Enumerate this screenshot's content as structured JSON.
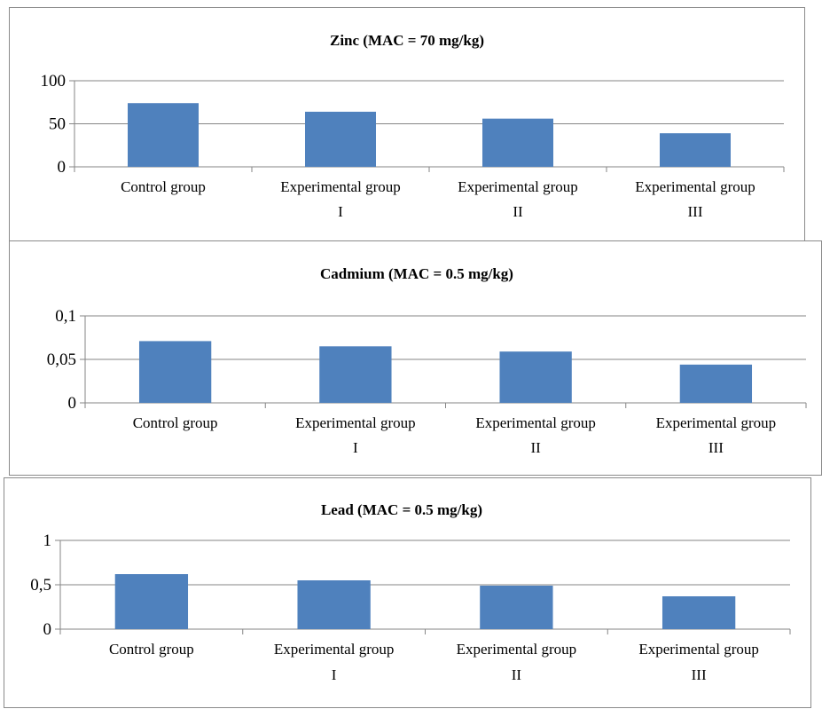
{
  "chart_data": [
    {
      "type": "bar",
      "title": "Zinc (MAC = 70 mg/kg)",
      "categories": [
        [
          "Control group"
        ],
        [
          "Experimental group",
          "I"
        ],
        [
          "Experimental group",
          "II"
        ],
        [
          "Experimental group",
          "III"
        ]
      ],
      "values": [
        74,
        64,
        56,
        39
      ],
      "yticks": [
        "0",
        "50",
        "100"
      ],
      "ylim": [
        0,
        100
      ],
      "grid": true,
      "color": "#4f81bd"
    },
    {
      "type": "bar",
      "title": "Cadmium (MAC = 0.5 mg/kg)",
      "categories": [
        [
          "Control group"
        ],
        [
          "Experimental group",
          "I"
        ],
        [
          "Experimental group",
          "II"
        ],
        [
          "Experimental group",
          "III"
        ]
      ],
      "values": [
        0.071,
        0.065,
        0.059,
        0.044
      ],
      "yticks": [
        "0",
        "0,05",
        "0,1"
      ],
      "ylim": [
        0,
        0.1
      ],
      "grid": true,
      "color": "#4f81bd"
    },
    {
      "type": "bar",
      "title": "Lead (MAC = 0.5 mg/kg)",
      "categories": [
        [
          "Control group"
        ],
        [
          "Experimental group",
          "I"
        ],
        [
          "Experimental group",
          "II"
        ],
        [
          "Experimental group",
          "III"
        ]
      ],
      "values": [
        0.62,
        0.55,
        0.49,
        0.37
      ],
      "yticks": [
        "0",
        "0,5",
        "1"
      ],
      "ylim": [
        0,
        1
      ],
      "grid": true,
      "color": "#4f81bd"
    }
  ]
}
